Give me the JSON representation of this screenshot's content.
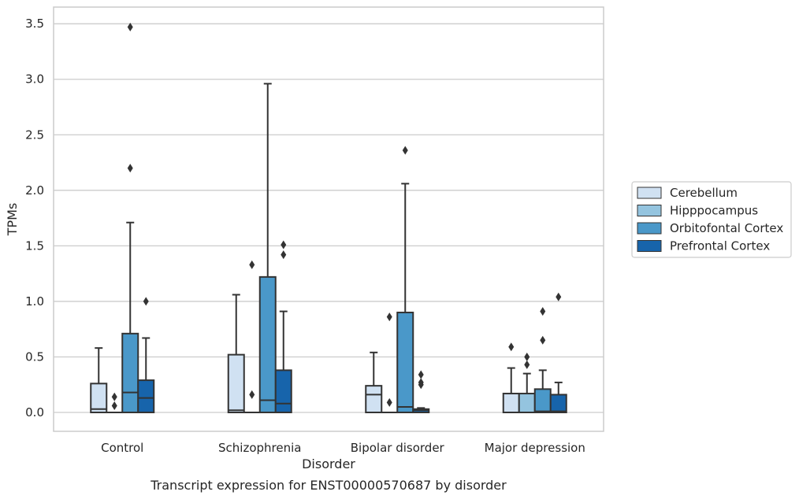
{
  "chart_data": {
    "type": "box",
    "caption": "Transcript expression for ENST00000570687 by disorder",
    "xlabel": "Disorder",
    "ylabel": "TPMs",
    "ylim": [
      -0.17,
      3.65
    ],
    "yticks": [
      0.0,
      0.5,
      1.0,
      1.5,
      2.0,
      2.5,
      3.0,
      3.5
    ],
    "ytick_labels": [
      "0.0",
      "0.5",
      "1.0",
      "1.5",
      "2.0",
      "2.5",
      "3.0",
      "3.5"
    ],
    "categories": [
      "Control",
      "Schizophrenia",
      "Bipolar disorder",
      "Major depression"
    ],
    "grid": "horizontal",
    "legend_position": "right",
    "series": [
      {
        "name": "Cerebellum",
        "color": "#d0e1f2",
        "boxes": [
          {
            "q1": 0.0,
            "median": 0.03,
            "q3": 0.26,
            "whisker_low": 0.0,
            "whisker_high": 0.58,
            "outliers": []
          },
          {
            "q1": 0.0,
            "median": 0.02,
            "q3": 0.52,
            "whisker_low": 0.0,
            "whisker_high": 1.06,
            "outliers": []
          },
          {
            "q1": 0.0,
            "median": 0.16,
            "q3": 0.24,
            "whisker_low": 0.0,
            "whisker_high": 0.54,
            "outliers": []
          },
          {
            "q1": 0.0,
            "median": 0.0,
            "q3": 0.17,
            "whisker_low": 0.0,
            "whisker_high": 0.4,
            "outliers": [
              0.59
            ]
          }
        ]
      },
      {
        "name": "Hipppocampus",
        "color": "#94c4df",
        "boxes": [
          {
            "q1": 0.0,
            "median": 0.0,
            "q3": 0.0,
            "whisker_low": 0.0,
            "whisker_high": 0.0,
            "outliers": [
              0.06,
              0.14
            ]
          },
          {
            "q1": 0.0,
            "median": 0.0,
            "q3": 0.0,
            "whisker_low": 0.0,
            "whisker_high": 0.0,
            "outliers": [
              0.16,
              1.33
            ]
          },
          {
            "q1": 0.0,
            "median": 0.0,
            "q3": 0.0,
            "whisker_low": 0.0,
            "whisker_high": 0.0,
            "outliers": [
              0.09,
              0.86
            ]
          },
          {
            "q1": 0.0,
            "median": 0.0,
            "q3": 0.17,
            "whisker_low": 0.0,
            "whisker_high": 0.35,
            "outliers": [
              0.43,
              0.5
            ]
          }
        ]
      },
      {
        "name": "Orbitofontal Cortex",
        "color": "#4a98c9",
        "boxes": [
          {
            "q1": 0.0,
            "median": 0.18,
            "q3": 0.71,
            "whisker_low": 0.0,
            "whisker_high": 1.71,
            "outliers": [
              2.2,
              3.47
            ]
          },
          {
            "q1": 0.0,
            "median": 0.11,
            "q3": 1.22,
            "whisker_low": 0.0,
            "whisker_high": 2.96,
            "outliers": []
          },
          {
            "q1": 0.0,
            "median": 0.05,
            "q3": 0.9,
            "whisker_low": 0.0,
            "whisker_high": 2.06,
            "outliers": [
              2.36
            ]
          },
          {
            "q1": 0.0,
            "median": 0.01,
            "q3": 0.21,
            "whisker_low": 0.0,
            "whisker_high": 0.38,
            "outliers": [
              0.65,
              0.91
            ]
          }
        ]
      },
      {
        "name": "Prefrontal Cortex",
        "color": "#1764ab",
        "boxes": [
          {
            "q1": 0.0,
            "median": 0.13,
            "q3": 0.29,
            "whisker_low": 0.0,
            "whisker_high": 0.67,
            "outliers": [
              1.0
            ]
          },
          {
            "q1": 0.0,
            "median": 0.08,
            "q3": 0.38,
            "whisker_low": 0.0,
            "whisker_high": 0.91,
            "outliers": [
              1.42,
              1.51
            ]
          },
          {
            "q1": 0.0,
            "median": 0.02,
            "q3": 0.03,
            "whisker_low": 0.0,
            "whisker_high": 0.04,
            "outliers": [
              0.25,
              0.27,
              0.34
            ]
          },
          {
            "q1": 0.0,
            "median": 0.01,
            "q3": 0.16,
            "whisker_low": 0.0,
            "whisker_high": 0.27,
            "outliers": [
              1.04
            ]
          }
        ]
      }
    ]
  }
}
